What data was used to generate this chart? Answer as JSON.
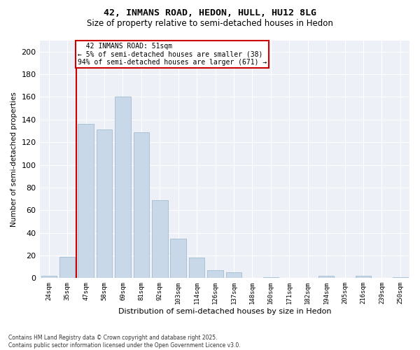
{
  "title_line1": "42, INMANS ROAD, HEDON, HULL, HU12 8LG",
  "title_line2": "Size of property relative to semi-detached houses in Hedon",
  "xlabel": "Distribution of semi-detached houses by size in Hedon",
  "ylabel": "Number of semi-detached properties",
  "categories": [
    "24sqm",
    "35sqm",
    "47sqm",
    "58sqm",
    "69sqm",
    "81sqm",
    "92sqm",
    "103sqm",
    "114sqm",
    "126sqm",
    "137sqm",
    "148sqm",
    "160sqm",
    "171sqm",
    "182sqm",
    "194sqm",
    "205sqm",
    "216sqm",
    "239sqm",
    "250sqm"
  ],
  "values": [
    2,
    19,
    136,
    131,
    160,
    129,
    69,
    35,
    18,
    7,
    5,
    0,
    1,
    0,
    0,
    2,
    0,
    2,
    0,
    1
  ],
  "bar_color": "#c8d8e8",
  "bar_edge_color": "#a0bcd0",
  "property_label": "42 INMANS ROAD: 51sqm",
  "pct_smaller": 5,
  "num_smaller": 38,
  "pct_larger": 94,
  "num_larger": 671,
  "vline_idx": 2,
  "vline_color": "#cc0000",
  "annotation_box_color": "#cc0000",
  "ylim": [
    0,
    210
  ],
  "yticks": [
    0,
    20,
    40,
    60,
    80,
    100,
    120,
    140,
    160,
    180,
    200
  ],
  "background_color": "#edf1f7",
  "footer_line1": "Contains HM Land Registry data © Crown copyright and database right 2025.",
  "footer_line2": "Contains public sector information licensed under the Open Government Licence v3.0."
}
